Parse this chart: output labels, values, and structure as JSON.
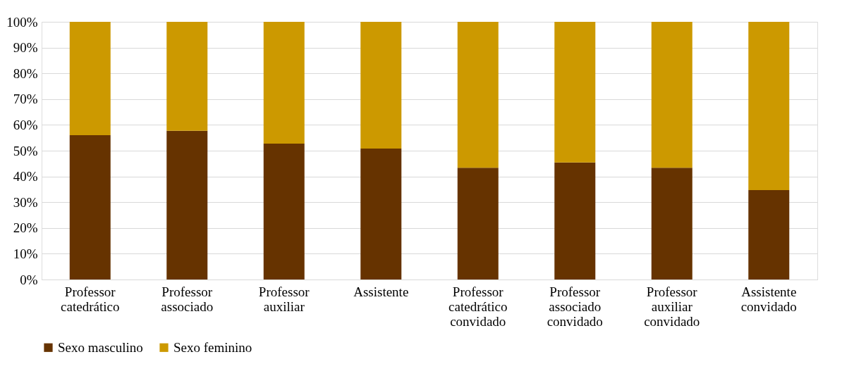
{
  "chart_data": {
    "type": "bar",
    "stacked": true,
    "categories": [
      "Professor catedrático",
      "Professor associado",
      "Professor auxiliar",
      "Assistente",
      "Professor catedrático convidado",
      "Professor associado convidado",
      "Professor auxiliar convidado",
      "Assistente convidado"
    ],
    "series": [
      {
        "name": "Sexo masculino",
        "color": "#663300",
        "values": [
          56,
          57.7,
          52.7,
          50.8,
          43.4,
          45.4,
          43.4,
          34.7
        ]
      },
      {
        "name": "Sexo feminino",
        "color": "#cc9900",
        "values": [
          44,
          42.3,
          47.3,
          49.2,
          56.6,
          54.6,
          56.6,
          65.3
        ]
      }
    ],
    "ylim": [
      0,
      100
    ],
    "yticks": [
      {
        "value": 0,
        "label": "0%"
      },
      {
        "value": 10,
        "label": "10%"
      },
      {
        "value": 20,
        "label": "20%"
      },
      {
        "value": 30,
        "label": "30%"
      },
      {
        "value": 40,
        "label": "40%"
      },
      {
        "value": 50,
        "label": "50%"
      },
      {
        "value": 60,
        "label": "60%"
      },
      {
        "value": 70,
        "label": "70%"
      },
      {
        "value": 80,
        "label": "80%"
      },
      {
        "value": 90,
        "label": "90%"
      },
      {
        "value": 100,
        "label": "100%"
      }
    ],
    "grid": "y",
    "legend": "bottom"
  }
}
